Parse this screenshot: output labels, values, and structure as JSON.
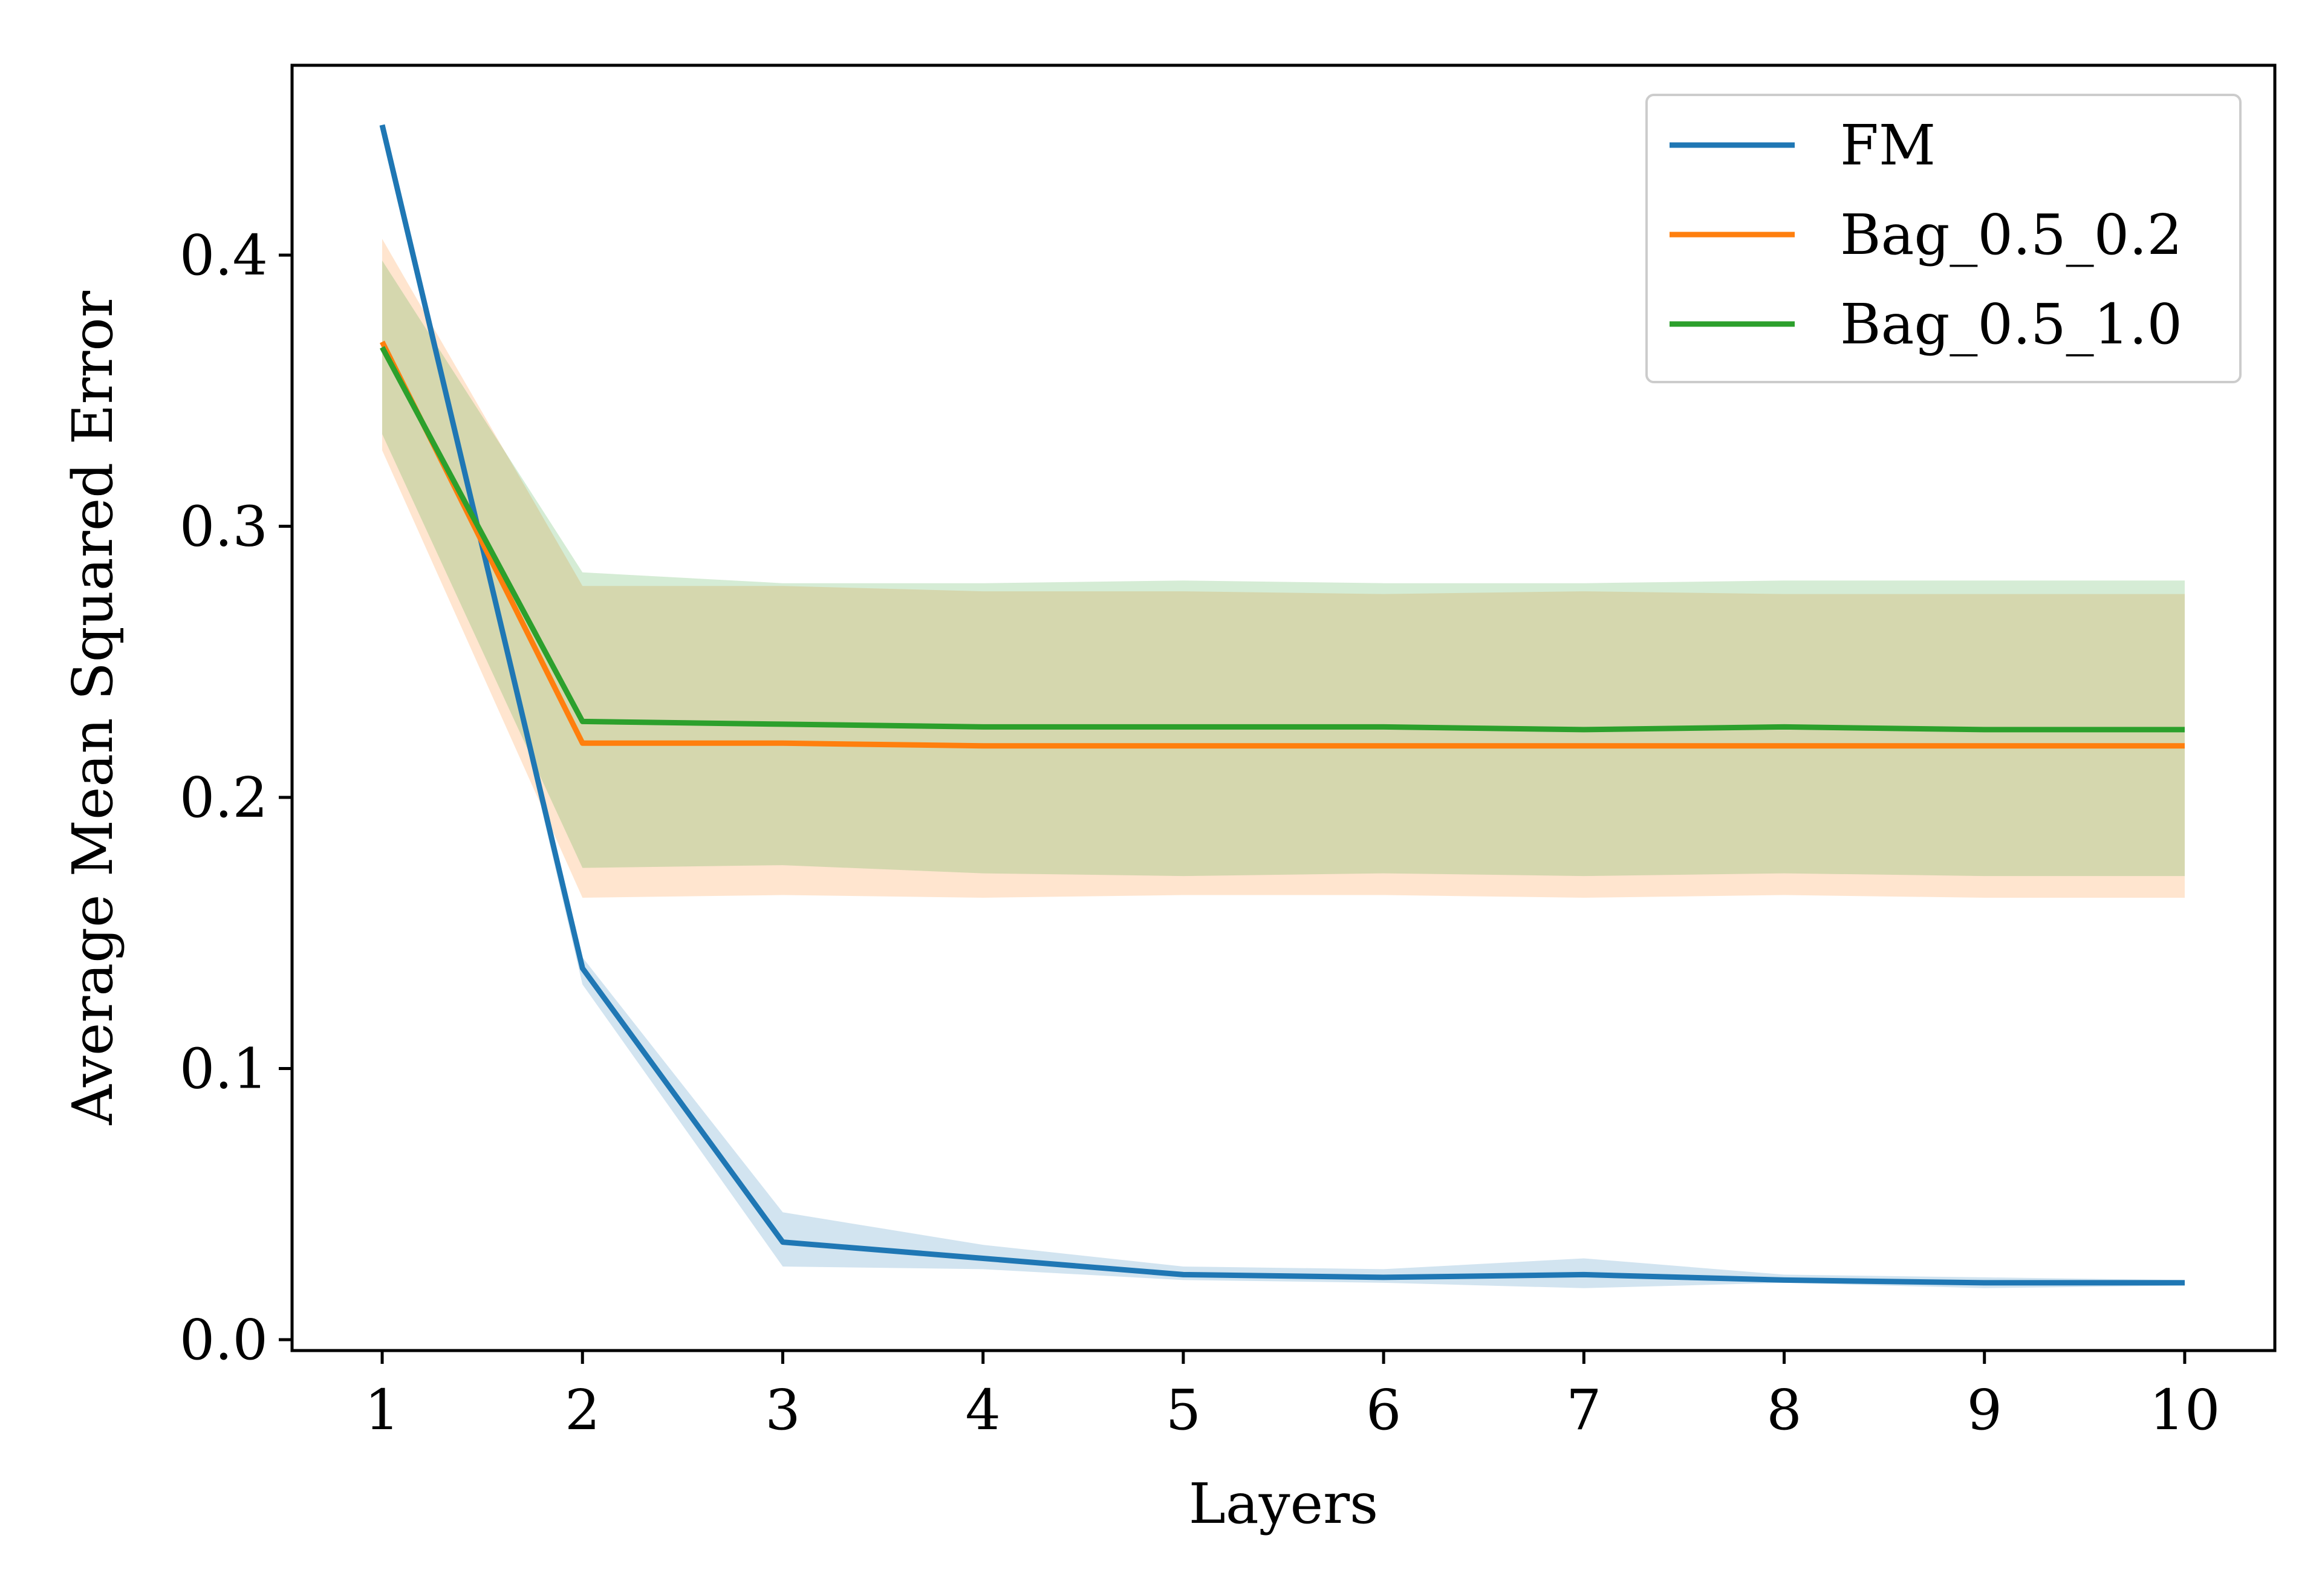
{
  "chart_data": {
    "type": "line",
    "title": "",
    "xlabel": "Layers",
    "ylabel": "Average Mean Squared Error",
    "x": [
      1,
      2,
      3,
      4,
      5,
      6,
      7,
      8,
      9,
      10
    ],
    "xlim": [
      0.55,
      10.45
    ],
    "ylim": [
      -0.004,
      0.47
    ],
    "xticks": [
      "1",
      "2",
      "3",
      "4",
      "5",
      "6",
      "7",
      "8",
      "9",
      "10"
    ],
    "yticks": [
      "0.0",
      "0.1",
      "0.2",
      "0.3",
      "0.4"
    ],
    "grid": false,
    "legend_position": "top-right",
    "series": [
      {
        "name": "FM",
        "color": "#1f77b4",
        "band_color": "#cfe0ef",
        "values": [
          0.448,
          0.137,
          0.036,
          0.03,
          0.024,
          0.023,
          0.024,
          0.022,
          0.021,
          0.021
        ],
        "lower": [
          0.448,
          0.131,
          0.027,
          0.026,
          0.022,
          0.021,
          0.019,
          0.021,
          0.019,
          0.02
        ],
        "upper": [
          0.448,
          0.141,
          0.047,
          0.035,
          0.027,
          0.026,
          0.03,
          0.024,
          0.023,
          0.022
        ]
      },
      {
        "name": "Bag_0.5_0.2",
        "color": "#ff7f0e",
        "band_color": "#ffe1cb",
        "values": [
          0.368,
          0.22,
          0.22,
          0.219,
          0.219,
          0.219,
          0.219,
          0.219,
          0.219,
          0.219
        ],
        "lower": [
          0.328,
          0.163,
          0.164,
          0.163,
          0.164,
          0.164,
          0.163,
          0.164,
          0.163,
          0.163
        ],
        "upper": [
          0.406,
          0.278,
          0.278,
          0.276,
          0.276,
          0.275,
          0.276,
          0.275,
          0.275,
          0.275
        ]
      },
      {
        "name": "Bag_0.5_1.0",
        "color": "#2ca02c",
        "band_color": "#d0ebcb",
        "values": [
          0.366,
          0.228,
          0.227,
          0.226,
          0.226,
          0.226,
          0.225,
          0.226,
          0.225,
          0.225
        ],
        "lower": [
          0.334,
          0.174,
          0.175,
          0.172,
          0.171,
          0.172,
          0.171,
          0.172,
          0.171,
          0.171
        ],
        "upper": [
          0.398,
          0.283,
          0.279,
          0.279,
          0.28,
          0.279,
          0.279,
          0.28,
          0.28,
          0.28
        ]
      }
    ]
  }
}
